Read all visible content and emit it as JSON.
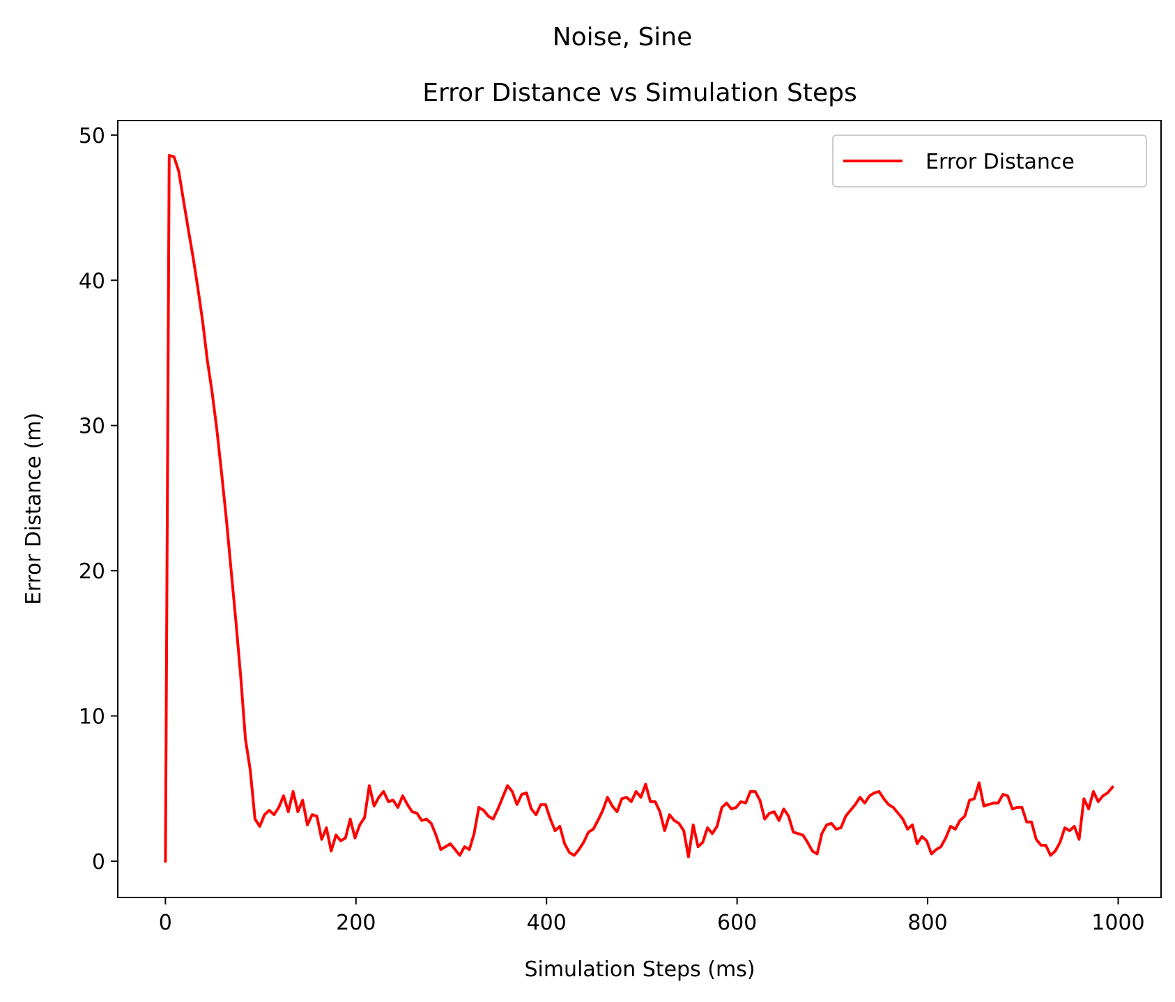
{
  "chart_data": {
    "type": "line",
    "suptitle": "Noise, Sine",
    "title": "Error Distance vs Simulation Steps",
    "xlabel": "Simulation Steps (ms)",
    "ylabel": "Error Distance (m)",
    "xlim": [
      -50,
      1045
    ],
    "ylim": [
      -2.5,
      51
    ],
    "xticks": [
      0,
      200,
      400,
      600,
      800,
      1000
    ],
    "yticks": [
      0,
      10,
      20,
      30,
      40,
      50
    ],
    "grid": false,
    "legend": {
      "position": "top-right",
      "entries": [
        "Error Distance"
      ]
    },
    "series": [
      {
        "name": "Error Distance",
        "color": "#ff0000",
        "x": [
          0,
          4,
          9,
          14,
          19,
          24,
          29,
          34,
          39,
          44,
          49,
          54,
          59,
          64,
          69,
          74,
          79,
          84,
          89,
          94,
          99,
          104,
          109,
          114,
          119,
          124,
          129,
          134,
          139,
          144,
          149,
          154,
          159,
          164,
          169,
          174,
          179,
          184,
          189,
          194,
          199,
          204,
          209,
          214,
          219,
          224,
          229,
          234,
          239,
          244,
          249,
          254,
          259,
          264,
          269,
          274,
          279,
          284,
          289,
          294,
          299,
          304,
          309,
          314,
          319,
          324,
          329,
          334,
          339,
          344,
          349,
          354,
          359,
          364,
          369,
          374,
          379,
          384,
          389,
          394,
          399,
          404,
          409,
          414,
          419,
          424,
          429,
          434,
          439,
          444,
          449,
          454,
          459,
          464,
          469,
          474,
          479,
          484,
          489,
          494,
          499,
          504,
          509,
          514,
          519,
          524,
          529,
          534,
          539,
          544,
          549,
          554,
          559,
          564,
          569,
          574,
          579,
          584,
          589,
          594,
          599,
          604,
          609,
          614,
          619,
          624,
          629,
          634,
          639,
          644,
          649,
          654,
          659,
          664,
          669,
          674,
          679,
          684,
          689,
          694,
          699,
          704,
          709,
          714,
          719,
          724,
          729,
          734,
          739,
          744,
          749,
          754,
          759,
          764,
          769,
          774,
          779,
          784,
          789,
          794,
          799,
          804,
          809,
          814,
          819,
          824,
          829,
          834,
          839,
          844,
          849,
          854,
          859,
          864,
          869,
          874,
          879,
          884,
          889,
          894,
          899,
          904,
          909,
          914,
          919,
          924,
          929,
          934,
          939,
          944,
          949,
          954,
          959,
          964,
          969,
          974,
          979,
          984,
          989,
          994
        ],
        "values": [
          0,
          48.6,
          48.5,
          47.5,
          45.5,
          43.5,
          41.6,
          39.5,
          37.2,
          34.5,
          32.3,
          29.7,
          26.7,
          23.5,
          20.0,
          16.5,
          12.7,
          8.4,
          6.3,
          2.9,
          2.4,
          3.2,
          3.5,
          3.2,
          3.7,
          4.5,
          3.4,
          4.8,
          3.4,
          4.2,
          2.5,
          3.2,
          3.1,
          1.5,
          2.3,
          0.7,
          1.8,
          1.4,
          1.6,
          2.9,
          1.6,
          2.5,
          3.0,
          5.2,
          3.8,
          4.4,
          4.8,
          4.1,
          4.2,
          3.7,
          4.5,
          3.9,
          3.4,
          3.3,
          2.8,
          2.9,
          2.6,
          1.8,
          0.8,
          1.0,
          1.2,
          0.8,
          0.4,
          1.0,
          0.8,
          1.9,
          3.7,
          3.5,
          3.1,
          2.9,
          3.6,
          4.4,
          5.2,
          4.8,
          3.9,
          4.6,
          4.7,
          3.6,
          3.2,
          3.9,
          3.9,
          2.9,
          2.1,
          2.4,
          1.2,
          0.6,
          0.4,
          0.8,
          1.3,
          2.0,
          2.2,
          2.8,
          3.5,
          4.4,
          3.8,
          3.4,
          4.3,
          4.4,
          4.1,
          4.8,
          4.4,
          5.3,
          4.1,
          4.1,
          3.4,
          2.1,
          3.2,
          2.8,
          2.6,
          2.1,
          0.3,
          2.5,
          1.0,
          1.3,
          2.3,
          1.9,
          2.4,
          3.7,
          4.0,
          3.6,
          3.7,
          4.1,
          4.0,
          4.8,
          4.8,
          4.2,
          2.9,
          3.3,
          3.4,
          2.8,
          3.6,
          3.1,
          2.0,
          1.9,
          1.8,
          1.3,
          0.7,
          0.5,
          1.9,
          2.5,
          2.6,
          2.2,
          2.3,
          3.1,
          3.5,
          3.9,
          4.4,
          4.0,
          4.5,
          4.7,
          4.8,
          4.3,
          3.9,
          3.7,
          3.3,
          2.9,
          2.2,
          2.5,
          1.2,
          1.7,
          1.4,
          0.5,
          0.8,
          1.0,
          1.6,
          2.4,
          2.2,
          2.8,
          3.1,
          4.2,
          4.3,
          5.4,
          3.8,
          3.9,
          4.0,
          4.0,
          4.6,
          4.5,
          3.6,
          3.7,
          3.7,
          2.7,
          2.7,
          1.5,
          1.1,
          1.1,
          0.4,
          0.7,
          1.3,
          2.3,
          2.1,
          2.4,
          1.5,
          4.3,
          3.6,
          4.8,
          4.1,
          4.5,
          4.7,
          5.1
        ]
      }
    ]
  }
}
